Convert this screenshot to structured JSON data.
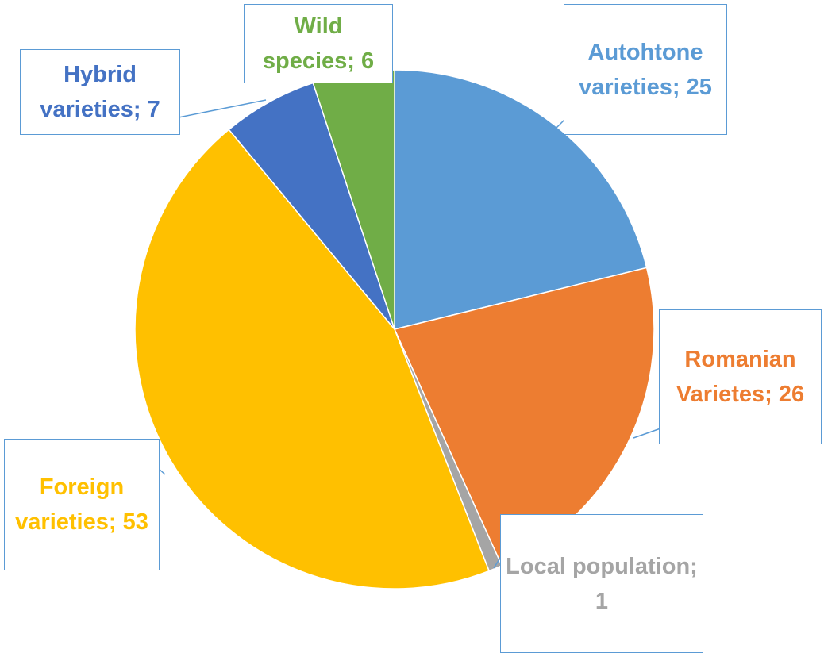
{
  "chart_data": {
    "type": "pie",
    "values": [
      25,
      26,
      1,
      53,
      7,
      6
    ],
    "value_labels": [
      "Autohtone varieties; 25",
      "Romanian Varietes; 26",
      "Local population; 1",
      "Foreign varieties; 53",
      "Hybrid varieties; 7",
      "Wild species; 6"
    ],
    "colors": [
      "#5b9bd5",
      "#ed7d31",
      "#a5a5a5",
      "#ffc000",
      "#4472c4",
      "#70ad47"
    ]
  }
}
